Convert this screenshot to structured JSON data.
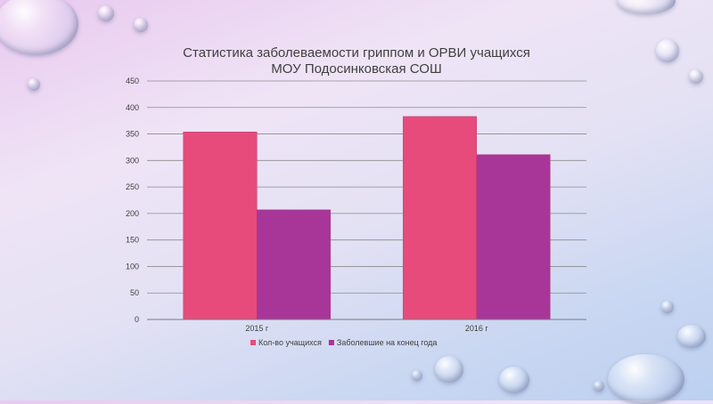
{
  "chart_data": {
    "type": "bar",
    "title": "Статистика заболеваемости гриппом и ОРВИ учащихся",
    "subtitle": "МОУ Подосинковская СОШ",
    "categories": [
      "2015 г",
      "2016 г"
    ],
    "series": [
      {
        "name": "Кол-во учащихся",
        "values": [
          354,
          383
        ],
        "color": "#e64b7c"
      },
      {
        "name": "Заболевшие на конец года",
        "values": [
          207,
          311
        ],
        "color": "#a83699"
      }
    ],
    "ylim": [
      0,
      450
    ],
    "yticks": [
      0,
      50,
      100,
      150,
      200,
      250,
      300,
      350,
      400,
      450
    ],
    "grid": true,
    "legend": "bottom"
  }
}
